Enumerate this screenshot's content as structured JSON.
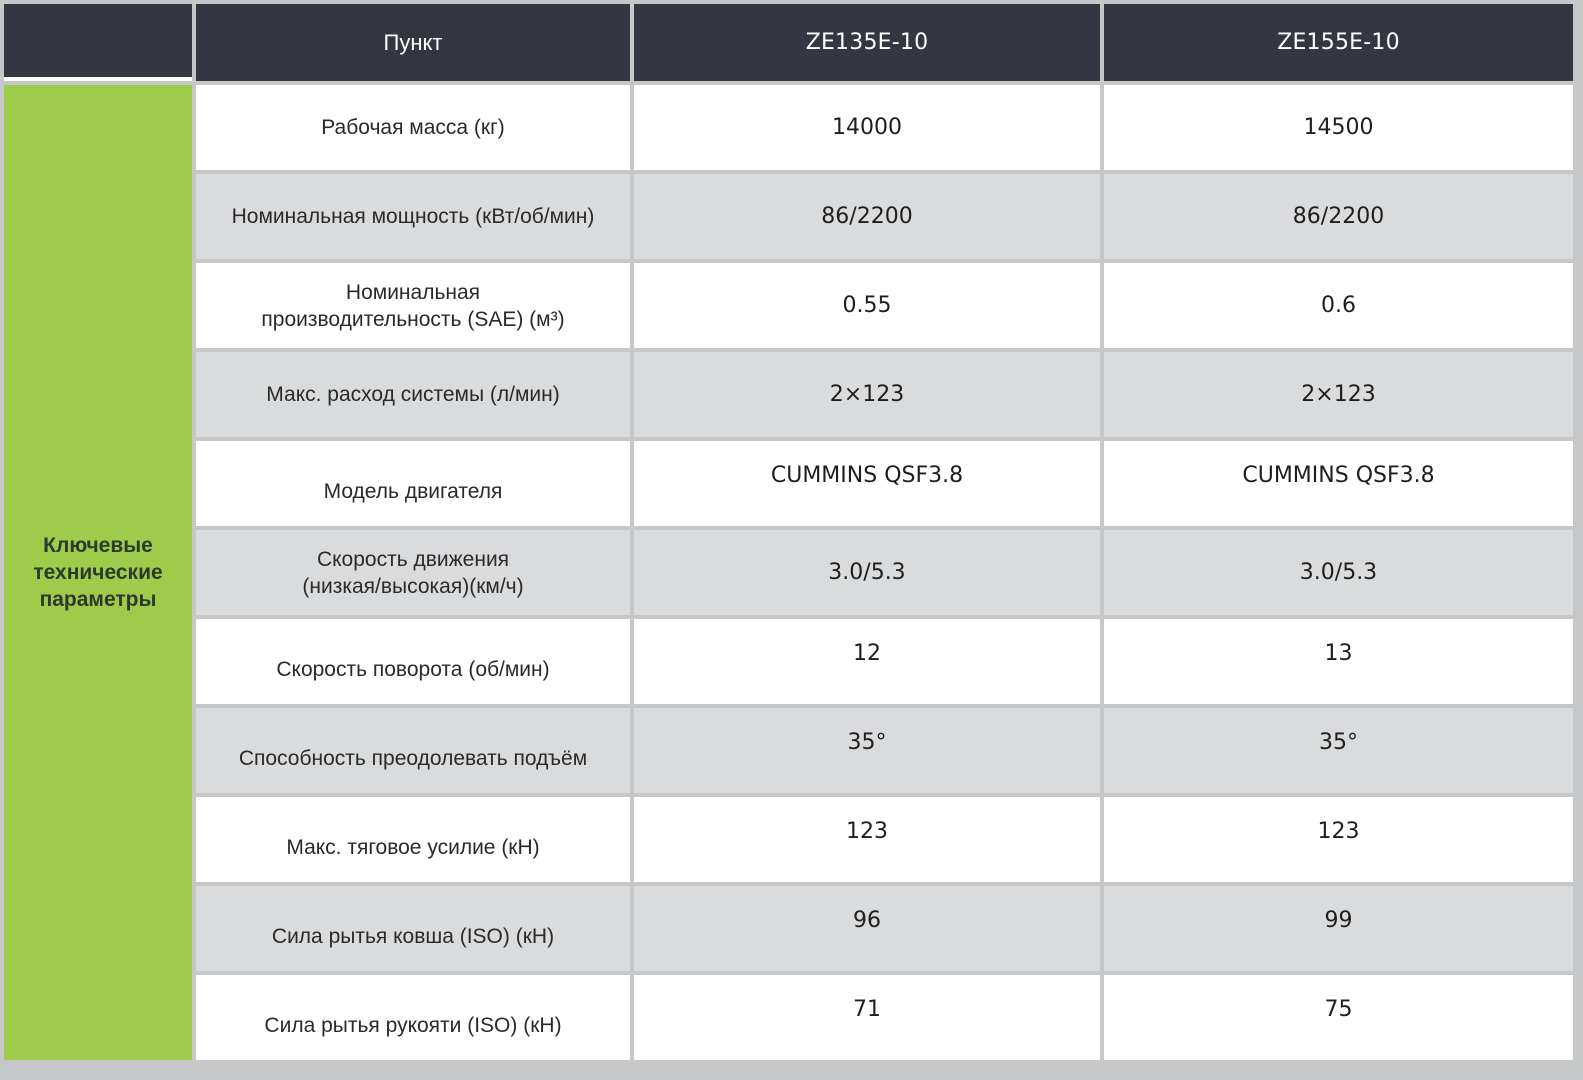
{
  "table": {
    "header": {
      "item_label": "Пункт",
      "models": [
        "ZE135E-10",
        "ZE155E-10"
      ]
    },
    "group_label": "Ключевые технические параметры",
    "rows": [
      {
        "param": "Рабочая масса (кг)",
        "v1": "14000",
        "v2": "14500"
      },
      {
        "param": "Номинальная мощность (кВт/об/мин)",
        "v1": "86/2200",
        "v2": "86/2200"
      },
      {
        "param": "Номинальная производительность (SAE) (м³)",
        "v1": "0.55",
        "v2": "0.6"
      },
      {
        "param": "Макс. расход системы (л/мин)",
        "v1": "2×123",
        "v2": "2×123"
      },
      {
        "param": "Модель двигателя",
        "v1": "CUMMINS QSF3.8",
        "v2": "CUMMINS QSF3.8"
      },
      {
        "param": "Скорость движения (низкая/высокая)(км/ч)",
        "v1": "3.0/5.3",
        "v2": "3.0/5.3"
      },
      {
        "param": "Скорость поворота (об/мин)",
        "v1": "12",
        "v2": "13"
      },
      {
        "param": "Способность преодолевать подъём",
        "v1": "35°",
        "v2": "35°"
      },
      {
        "param": "Макс. тяговое усилие (кН)",
        "v1": "123",
        "v2": "123"
      },
      {
        "param": "Сила рытья ковша (ISO) (кН)",
        "v1": "96",
        "v2": "99"
      },
      {
        "param": "Сила рытья рукояти (ISO) (кН)",
        "v1": "71",
        "v2": "75"
      }
    ]
  },
  "colors": {
    "header_bg": "#343641",
    "group_bg": "#9ecb4a",
    "row_white": "#ffffff",
    "row_grey": "#d9dbdd",
    "grid": "#c5c7c9"
  }
}
